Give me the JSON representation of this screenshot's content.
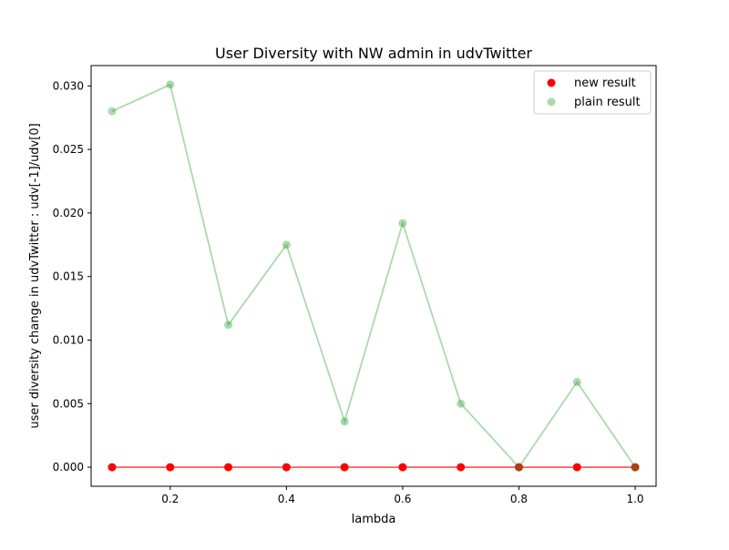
{
  "chart_data": {
    "type": "scatter",
    "title": "User Diversity with NW admin in udvTwitter",
    "xlabel": "lambda",
    "ylabel": "user diversity change in udvTwitter : udv[-1]/udv[0]",
    "xlim": [
      0.064,
      1.036
    ],
    "ylim": [
      -0.0015,
      0.0316
    ],
    "x_ticks": [
      0.2,
      0.4,
      0.6,
      0.8,
      1.0
    ],
    "x_tick_labels": [
      "0.2",
      "0.4",
      "0.6",
      "0.8",
      "1.0"
    ],
    "y_ticks": [
      0.0,
      0.005,
      0.01,
      0.015,
      0.02,
      0.025,
      0.03
    ],
    "y_tick_labels": [
      "0.000",
      "0.005",
      "0.010",
      "0.015",
      "0.020",
      "0.025",
      "0.030"
    ],
    "grid": false,
    "legend_position": "top-right",
    "x": [
      0.1,
      0.2,
      0.3,
      0.4,
      0.5,
      0.6,
      0.7,
      0.8,
      0.9,
      1.0
    ],
    "series": [
      {
        "name": "new result",
        "color": "#ff0000",
        "alpha": 1.0,
        "values": [
          0.0,
          0.0,
          0.0,
          0.0,
          0.0,
          0.0,
          0.0,
          0.0,
          0.0,
          0.0
        ]
      },
      {
        "name": "plain result",
        "color": "#2ca02c",
        "alpha": 0.4,
        "values": [
          0.028,
          0.0301,
          0.0112,
          0.0175,
          0.0036,
          0.0192,
          0.005,
          0.0,
          0.0067,
          0.0
        ]
      }
    ]
  }
}
